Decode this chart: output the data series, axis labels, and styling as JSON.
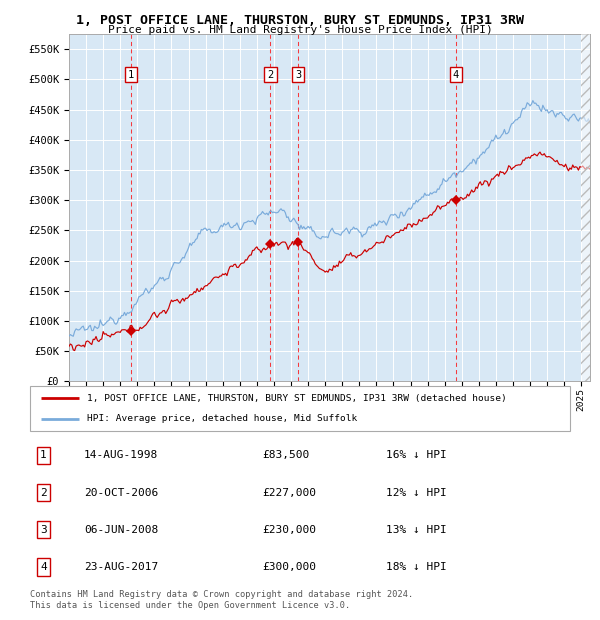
{
  "title_line1": "1, POST OFFICE LANE, THURSTON, BURY ST EDMUNDS, IP31 3RW",
  "title_line2": "Price paid vs. HM Land Registry's House Price Index (HPI)",
  "legend_label_red": "1, POST OFFICE LANE, THURSTON, BURY ST EDMUNDS, IP31 3RW (detached house)",
  "legend_label_blue": "HPI: Average price, detached house, Mid Suffolk",
  "sales": [
    {
      "num": 1,
      "date_label": "14-AUG-1998",
      "date_x": 1998.62,
      "price": 83500,
      "hpi_pct": "16% ↓ HPI"
    },
    {
      "num": 2,
      "date_label": "20-OCT-2006",
      "date_x": 2006.8,
      "price": 227000,
      "hpi_pct": "12% ↓ HPI"
    },
    {
      "num": 3,
      "date_label": "06-JUN-2008",
      "date_x": 2008.43,
      "price": 230000,
      "hpi_pct": "13% ↓ HPI"
    },
    {
      "num": 4,
      "date_label": "23-AUG-2017",
      "date_x": 2017.64,
      "price": 300000,
      "hpi_pct": "18% ↓ HPI"
    }
  ],
  "xmin": 1995.0,
  "xmax": 2025.5,
  "ymin": 0,
  "ymax": 575000,
  "background_color": "#d8e8f5",
  "red_color": "#cc0000",
  "blue_color": "#7aabdb",
  "footnote1": "Contains HM Land Registry data © Crown copyright and database right 2024.",
  "footnote2": "This data is licensed under the Open Government Licence v3.0."
}
